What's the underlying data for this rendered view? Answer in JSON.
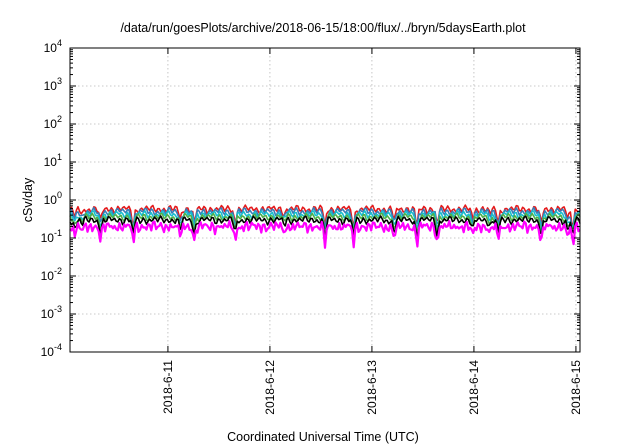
{
  "chart_data": {
    "type": "line",
    "title": "/data/run/goesPlots/archive/2018-06-15/18:00/flux/../bryn/5daysEarth.plot",
    "xlabel": "Coordinated Universal Time (UTC)",
    "ylabel": "cSv/day",
    "yscale": "log",
    "ylim": [
      0.0001,
      10000
    ],
    "y_ticks": [
      {
        "value": 0.0001,
        "base": "10",
        "exp": "-4"
      },
      {
        "value": 0.001,
        "base": "10",
        "exp": "-3"
      },
      {
        "value": 0.01,
        "base": "10",
        "exp": "-2"
      },
      {
        "value": 0.1,
        "base": "10",
        "exp": "-1"
      },
      {
        "value": 1,
        "base": "10",
        "exp": "0"
      },
      {
        "value": 10,
        "base": "10",
        "exp": "1"
      },
      {
        "value": 100,
        "base": "10",
        "exp": "2"
      },
      {
        "value": 1000,
        "base": "10",
        "exp": "3"
      },
      {
        "value": 10000,
        "base": "10",
        "exp": "4"
      }
    ],
    "xlim": [
      0,
      5
    ],
    "x_ticks": [
      {
        "value": 0.96,
        "label": "2018-6-11"
      },
      {
        "value": 1.96,
        "label": "2018-6-12"
      },
      {
        "value": 2.96,
        "label": "2018-6-13"
      },
      {
        "value": 3.96,
        "label": "2018-6-14"
      },
      {
        "value": 4.96,
        "label": "2018-6-15"
      }
    ],
    "grid": true,
    "dips": [
      [
        0.05,
        0.6
      ],
      [
        0.12,
        0.75
      ],
      [
        0.3,
        0.45
      ],
      [
        0.62,
        0.4
      ],
      [
        1.08,
        0.55
      ],
      [
        1.22,
        0.4
      ],
      [
        1.62,
        0.45
      ],
      [
        2.1,
        0.75
      ],
      [
        2.5,
        0.35
      ],
      [
        2.78,
        0.35
      ],
      [
        3.12,
        0.9
      ],
      [
        3.18,
        0.5
      ],
      [
        3.4,
        0.35
      ],
      [
        3.6,
        0.4
      ],
      [
        3.95,
        0.55
      ],
      [
        4.12,
        0.7
      ],
      [
        4.2,
        0.45
      ],
      [
        4.62,
        0.35
      ],
      [
        4.88,
        0.5
      ],
      [
        4.93,
        0.35
      ]
    ],
    "series": [
      {
        "color": "#e41a1c",
        "level": 0.58
      },
      {
        "color": "#377eb8",
        "level": 0.5
      },
      {
        "color": "#17becf",
        "level": 0.42
      },
      {
        "color": "#4daf4a",
        "level": 0.36
      },
      {
        "color": "#000000",
        "level": 0.3
      },
      {
        "color": "#ff00ff",
        "level": 0.22
      }
    ]
  }
}
